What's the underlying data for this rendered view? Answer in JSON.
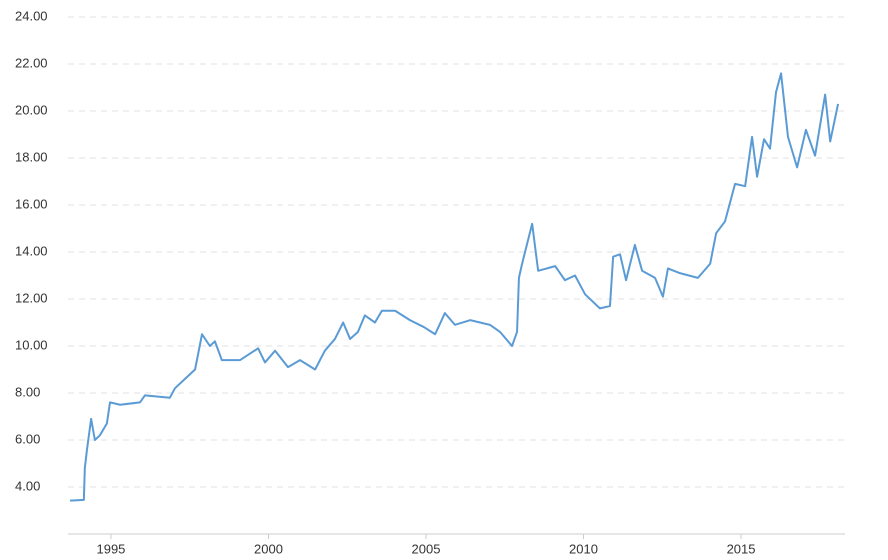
{
  "chart_data": {
    "type": "line",
    "x": [
      1993.7,
      1994.14,
      1994.17,
      1994.24,
      1994.37,
      1994.49,
      1994.65,
      1994.87,
      1994.97,
      1995.29,
      1995.92,
      1996.08,
      1996.87,
      1997.03,
      1997.35,
      1997.67,
      1997.89,
      1998.14,
      1998.3,
      1998.52,
      1999.1,
      1999.67,
      1999.89,
      2000.21,
      2000.62,
      2001.0,
      2001.48,
      2001.79,
      2002.11,
      2002.37,
      2002.59,
      2002.84,
      2003.06,
      2003.38,
      2003.6,
      2004.02,
      2004.49,
      2004.94,
      2005.29,
      2005.6,
      2005.92,
      2006.4,
      2007.03,
      2007.35,
      2007.73,
      2007.89,
      2007.95,
      2008.05,
      2008.37,
      2008.56,
      2009.1,
      2009.41,
      2009.73,
      2010.05,
      2010.52,
      2010.84,
      2010.94,
      2011.16,
      2011.35,
      2011.63,
      2011.86,
      2012.27,
      2012.52,
      2012.68,
      2013.06,
      2013.63,
      2014.02,
      2014.21,
      2014.49,
      2014.81,
      2015.13,
      2015.35,
      2015.51,
      2015.73,
      2015.92,
      2016.11,
      2016.27,
      2016.49,
      2016.78,
      2017.06,
      2017.35,
      2017.67,
      2017.83,
      2018.08
    ],
    "series": [
      {
        "color": "#5b9bd5",
        "values": [
          3.42,
          3.45,
          4.8,
          5.6,
          6.9,
          6.0,
          6.2,
          6.7,
          7.6,
          7.5,
          7.6,
          7.9,
          7.8,
          8.2,
          8.6,
          9.0,
          10.5,
          10.0,
          10.2,
          9.4,
          9.4,
          9.9,
          9.3,
          9.8,
          9.1,
          9.4,
          9.0,
          9.8,
          10.3,
          11.0,
          10.3,
          10.6,
          11.3,
          11.0,
          11.5,
          11.5,
          11.1,
          10.8,
          10.5,
          11.4,
          10.9,
          11.1,
          10.9,
          10.6,
          10.0,
          10.6,
          12.9,
          13.5,
          15.2,
          13.2,
          13.4,
          12.8,
          13.0,
          12.2,
          11.6,
          11.7,
          13.8,
          13.9,
          12.8,
          14.3,
          13.2,
          12.9,
          12.1,
          13.3,
          13.1,
          12.9,
          13.5,
          14.8,
          15.3,
          16.9,
          16.8,
          18.9,
          17.2,
          18.8,
          18.4,
          20.8,
          21.6,
          18.9,
          17.6,
          19.2,
          18.1,
          20.7,
          18.7,
          20.3
        ]
      }
    ],
    "xlim": [
      1993.7,
      2018.3
    ],
    "xticks": [
      1995,
      2000,
      2005,
      2010,
      2015
    ],
    "ylim": [
      2,
      24
    ],
    "yticks": [
      {
        "value": 4,
        "label": "4.00"
      },
      {
        "value": 6,
        "label": "6.00"
      },
      {
        "value": 8,
        "label": "8.00"
      },
      {
        "value": 10,
        "label": "10.00"
      },
      {
        "value": 12,
        "label": "12.00"
      },
      {
        "value": 14,
        "label": "14.00"
      },
      {
        "value": 16,
        "label": "16.00"
      },
      {
        "value": 18,
        "label": "18.00"
      },
      {
        "value": 20,
        "label": "20.00"
      },
      {
        "value": 22,
        "label": "22.00"
      },
      {
        "value": 24,
        "label": "24.00"
      }
    ],
    "grid": true
  }
}
